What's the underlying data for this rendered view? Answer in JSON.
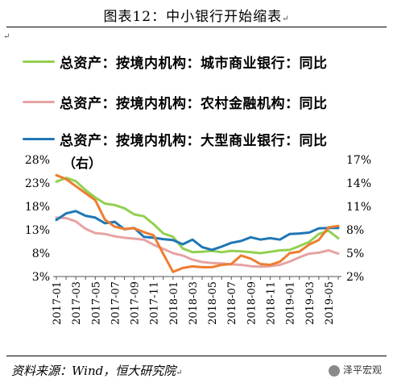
{
  "title": "图表12：中小银行开始缩表",
  "title_mark": "↵",
  "legend_mark": "↵",
  "source_text": "资料来源：Wind，恒大研究院",
  "source_mark": "↵",
  "watermark_text": "泽平宏观",
  "right_axis_note": "（右）",
  "colors": {
    "city": "#92D050",
    "rural": "#E6A3A3",
    "large": "#1F77B4",
    "orange": "#ED7D31"
  },
  "chart_data": {
    "type": "line",
    "x": [
      "2017-01",
      "2017-02",
      "2017-03",
      "2017-04",
      "2017-05",
      "2017-06",
      "2017-07",
      "2017-08",
      "2017-09",
      "2017-10",
      "2017-11",
      "2017-12",
      "2018-01",
      "2018-02",
      "2018-03",
      "2018-04",
      "2018-05",
      "2018-06",
      "2018-07",
      "2018-08",
      "2018-09",
      "2018-10",
      "2018-11",
      "2018-12",
      "2019-01",
      "2019-02",
      "2019-03",
      "2019-04",
      "2019-05",
      "2019-06"
    ],
    "x_tick_labels": [
      "2017-01",
      "2017-03",
      "2017-05",
      "2017-07",
      "2017-09",
      "2017-11",
      "2018-01",
      "2018-03",
      "2018-05",
      "2018-07",
      "2018-09",
      "2018-11",
      "2019-01",
      "2019-03",
      "2019-05"
    ],
    "y_left": {
      "ticks": [
        "3%",
        "8%",
        "13%",
        "18%",
        "23%",
        "28%"
      ],
      "range": [
        3,
        28
      ],
      "unit": "%"
    },
    "y_right": {
      "ticks": [
        "2%",
        "5%",
        "8%",
        "11%",
        "14%",
        "17%"
      ],
      "range": [
        2,
        17
      ],
      "unit": "%"
    },
    "grid": false,
    "series": [
      {
        "name": "总资产：按境内机构：城市商业银行：同比",
        "axis": "left",
        "color": "#92D050",
        "values": [
          23.3,
          24.1,
          23.4,
          21.5,
          19.9,
          18.6,
          18.3,
          17.6,
          16.3,
          15.9,
          14.2,
          12.2,
          11.5,
          9.0,
          8.2,
          8.3,
          8.5,
          8.2,
          8.5,
          8.4,
          8.2,
          8.0,
          8.3,
          8.6,
          8.7,
          9.5,
          10.4,
          12.1,
          12.8,
          11.2
        ]
      },
      {
        "name": "总资产：按境内机构：农村金融机构：同比",
        "axis": "left",
        "color": "#E6A3A3",
        "values": [
          15.6,
          15.5,
          14.8,
          13.2,
          12.3,
          12.1,
          11.6,
          11.3,
          11.1,
          10.9,
          9.8,
          8.9,
          8.0,
          7.5,
          6.6,
          6.1,
          5.9,
          5.8,
          5.6,
          5.5,
          5.2,
          5.1,
          5.2,
          5.5,
          6.2,
          7.1,
          7.9,
          8.1,
          8.6,
          7.9
        ]
      },
      {
        "name": "总资产：按境内机构：大型商业银行：同比",
        "axis": "left",
        "color": "#1F77B4",
        "values": [
          15.1,
          16.5,
          17.0,
          16.0,
          15.6,
          14.4,
          14.7,
          13.1,
          13.4,
          11.5,
          11.3,
          11.0,
          10.8,
          9.9,
          10.9,
          9.3,
          8.7,
          9.4,
          10.2,
          10.6,
          11.4,
          10.9,
          11.2,
          10.9,
          12.1,
          12.2,
          12.4,
          13.3,
          13.4,
          13.4
        ]
      },
      {
        "name": "",
        "axis": "right",
        "color": "#ED7D31",
        "values": [
          15.0,
          14.5,
          13.6,
          12.7,
          11.8,
          9.3,
          8.4,
          8.1,
          8.2,
          7.7,
          7.3,
          4.9,
          2.6,
          3.1,
          3.3,
          3.2,
          3.2,
          3.5,
          3.6,
          4.7,
          4.3,
          3.6,
          3.5,
          3.9,
          5.0,
          5.2,
          6.1,
          6.7,
          8.3,
          8.5
        ]
      }
    ]
  },
  "legend": [
    {
      "label": "总资产：按境内机构：城市商业银行：同比",
      "color": "#92D050"
    },
    {
      "label": "总资产：按境内机构：农村金融机构：同比",
      "color": "#E6A3A3"
    },
    {
      "label": "总资产：按境内机构：大型商业银行：同比",
      "color": "#1F77B4"
    }
  ]
}
